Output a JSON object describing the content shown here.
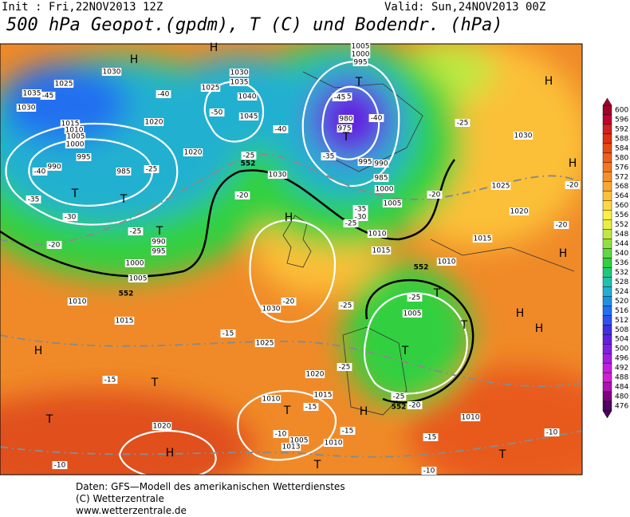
{
  "header": {
    "init": "Init : Fri,22NOV2013 12Z",
    "valid": "Valid: Sun,24NOV2013 00Z",
    "title": "500 hPa Geopot.(gpdm), T (C) und Bodendr. (hPa)"
  },
  "footer": {
    "lines": [
      "Daten: GFS—Modell des amerikanischen Wetterdienstes",
      "(C) Wetterzentrale",
      "www.wetterzentrale.de"
    ]
  },
  "colorbar": {
    "labels": [
      600,
      596,
      592,
      588,
      584,
      580,
      576,
      572,
      568,
      564,
      560,
      556,
      552,
      548,
      544,
      540,
      536,
      532,
      528,
      524,
      520,
      516,
      512,
      508,
      504,
      500,
      496,
      492,
      488,
      484,
      480,
      476
    ],
    "colors": [
      "#a0002a",
      "#c00030",
      "#d02020",
      "#e03010",
      "#e84a10",
      "#f06018",
      "#f07820",
      "#f49028",
      "#f8a830",
      "#fcc038",
      "#ffd840",
      "#fff040",
      "#e8f040",
      "#c0e840",
      "#90e040",
      "#60d840",
      "#30d040",
      "#20c878",
      "#20c0b0",
      "#20b0d0",
      "#2090e0",
      "#2070f0",
      "#3050f0",
      "#4030e0",
      "#6020e0",
      "#8020e0",
      "#a020e0",
      "#c020e0",
      "#d020d0",
      "#b010b0",
      "#800080",
      "#500060"
    ]
  },
  "map": {
    "centers": [
      "H",
      "H",
      "H",
      "H",
      "H",
      "H",
      "H",
      "H",
      "H",
      "H",
      "H",
      "T",
      "T",
      "T",
      "T",
      "T",
      "T",
      "T",
      "T",
      "T",
      "T",
      "T",
      "T",
      "T"
    ],
    "pressure": [
      "1030",
      "1025",
      "1035",
      "1030",
      "1015",
      "1010",
      "1005",
      "1000",
      "995",
      "990",
      "985",
      "1020",
      "1025",
      "1030",
      "1035",
      "1040",
      "1045",
      "1020",
      "1030",
      "1005",
      "1000",
      "995",
      "985",
      "980",
      "975",
      "995",
      "990",
      "985",
      "1000",
      "1005",
      "1010",
      "1015",
      "1010",
      "1015",
      "1020",
      "1025",
      "1030",
      "990",
      "995",
      "1000",
      "1005",
      "1010",
      "1015",
      "1030",
      "1025",
      "1020",
      "1010",
      "1015",
      "1005",
      "1010",
      "1020",
      "1005",
      "1013",
      "1010"
    ],
    "temperature": [
      "-45",
      "-40",
      "-50",
      "-40",
      "-45",
      "-40",
      "-35",
      "-25",
      "-25",
      "-40",
      "-35",
      "-30",
      "-20",
      "-25",
      "-20",
      "-20",
      "-25",
      "-35",
      "-30",
      "-25",
      "-20",
      "-20",
      "-20",
      "-15",
      "-25",
      "-25",
      "-15",
      "-15",
      "-25",
      "-25",
      "-20",
      "-15",
      "-15",
      "-10",
      "-10",
      "-10",
      "-10"
    ],
    "contour": [
      "552",
      "552",
      "552",
      "552"
    ]
  }
}
